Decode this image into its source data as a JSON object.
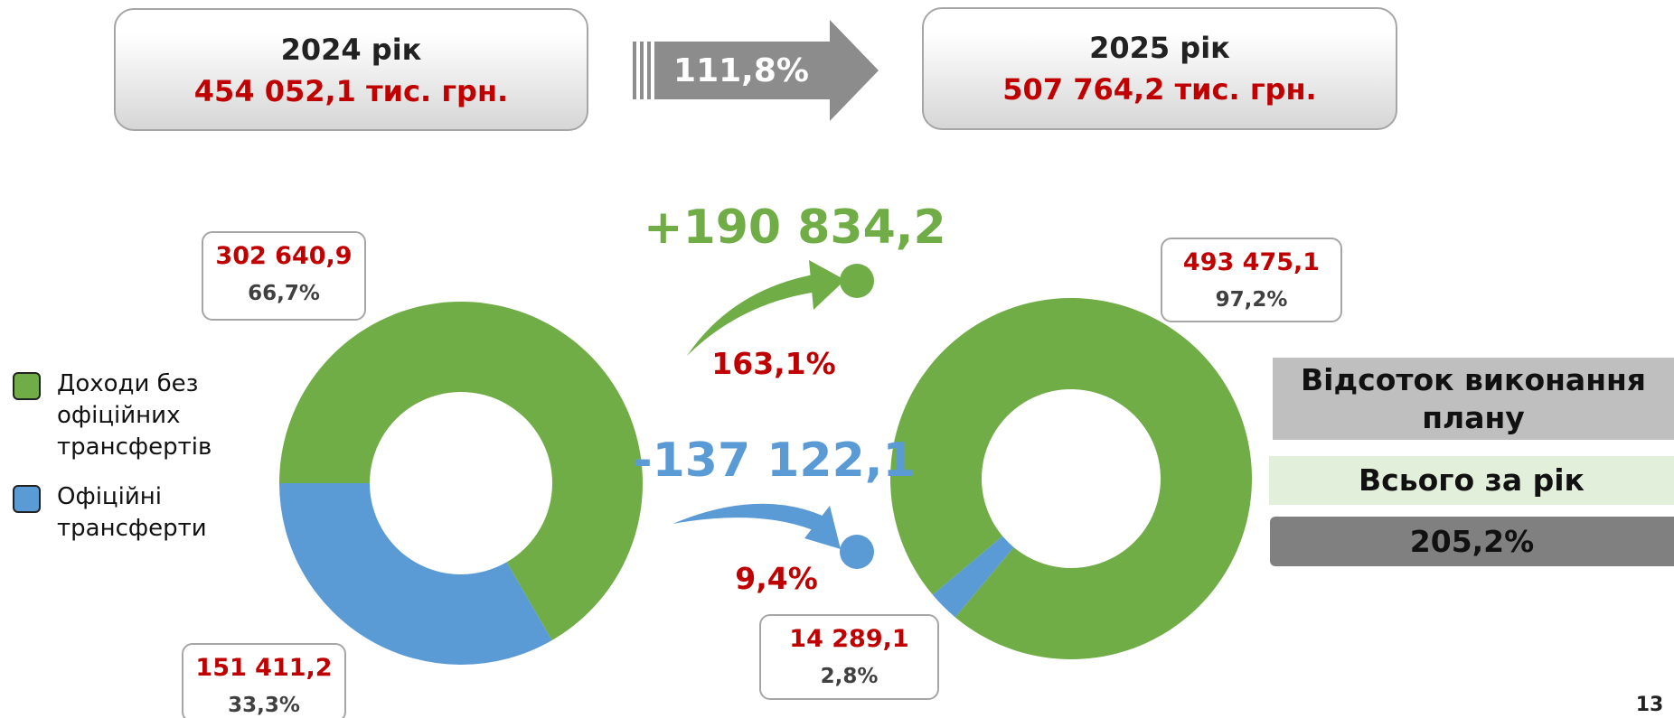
{
  "top": {
    "before": {
      "year": "2024 рік",
      "amount": "454 052,1 тис. грн."
    },
    "growth": "111,8%",
    "after": {
      "year": "2025 рік",
      "amount": "507 764,2 тис. грн."
    }
  },
  "legend": [
    {
      "label": "Доходи без офіційних трансфертів",
      "color": "#70ad47"
    },
    {
      "label": "Офіційні трансферти",
      "color": "#5b9bd5"
    }
  ],
  "chart_data": [
    {
      "type": "pie",
      "donut": true,
      "values": [
        302640.9,
        151411.2
      ],
      "value_labels": [
        "302 640,9",
        "151 411,2"
      ],
      "shares": [
        66.7,
        33.3
      ],
      "share_labels": [
        "66,7%",
        "33,3%"
      ],
      "colors": [
        "#70ad47",
        "#5b9bd5"
      ]
    },
    {
      "type": "pie",
      "donut": true,
      "values": [
        493475.1,
        14289.1
      ],
      "value_labels": [
        "493 475,1",
        "14 289,1"
      ],
      "shares": [
        97.2,
        2.8
      ],
      "share_labels": [
        "97,2%",
        "2,8%"
      ],
      "colors": [
        "#70ad47",
        "#5b9bd5"
      ]
    }
  ],
  "changes": [
    {
      "value_label": "+190 834,2",
      "percent": "163,1%",
      "color": "#70ad47"
    },
    {
      "value_label": "-137 122,1",
      "percent": "9,4%",
      "color": "#5b9bd5"
    }
  ],
  "plan": {
    "title": "Відсоток виконання плану",
    "row": "Всього за рік",
    "value": "205,2%"
  },
  "page_number": "13"
}
